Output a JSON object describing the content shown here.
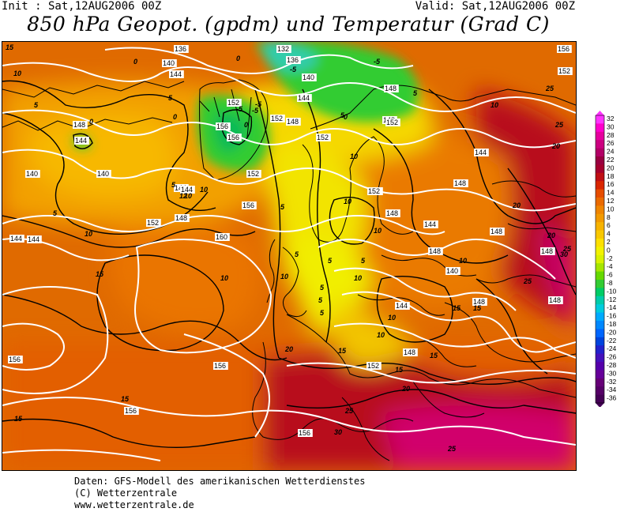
{
  "header": {
    "init": "Init : Sat,12AUG2006 00Z",
    "valid": "Valid: Sat,12AUG2006 00Z",
    "title": "850 hPa Geopot. (gpdm) und Temperatur (Grad C)"
  },
  "map": {
    "kind": "weather-forecast-map",
    "variables": [
      "850 hPa geopotential (gpdm)",
      "temperature (Grad C)"
    ],
    "geopotential_labels": [
      {
        "id": "g1",
        "text": "136"
      },
      {
        "id": "g2",
        "text": "132"
      },
      {
        "id": "g3",
        "text": "136"
      },
      {
        "id": "g4",
        "text": "140"
      },
      {
        "id": "g5",
        "text": "144"
      },
      {
        "id": "g6",
        "text": "140"
      },
      {
        "id": "g7",
        "text": "144"
      },
      {
        "id": "g8",
        "text": "148"
      },
      {
        "id": "g9",
        "text": "152"
      },
      {
        "id": "g10",
        "text": "152"
      },
      {
        "id": "g11",
        "text": "156"
      },
      {
        "id": "g12",
        "text": "156"
      },
      {
        "id": "g13",
        "text": "148"
      },
      {
        "id": "g14",
        "text": "148"
      },
      {
        "id": "g15",
        "text": "144"
      },
      {
        "id": "g16",
        "text": "140"
      },
      {
        "id": "g17",
        "text": "144"
      },
      {
        "id": "g18",
        "text": "152"
      },
      {
        "id": "g19",
        "text": "148"
      },
      {
        "id": "g20",
        "text": "152"
      },
      {
        "id": "g21",
        "text": "144"
      },
      {
        "id": "g22",
        "text": "148"
      },
      {
        "id": "g23",
        "text": "144"
      },
      {
        "id": "g24",
        "text": "152"
      },
      {
        "id": "g25",
        "text": "152"
      },
      {
        "id": "g26",
        "text": "156"
      },
      {
        "id": "g27",
        "text": "160"
      },
      {
        "id": "g28",
        "text": "148"
      },
      {
        "id": "g29",
        "text": "144"
      },
      {
        "id": "g30",
        "text": "140"
      },
      {
        "id": "g31",
        "text": "144"
      },
      {
        "id": "g32",
        "text": "148"
      },
      {
        "id": "g33",
        "text": "148"
      },
      {
        "id": "g34",
        "text": "144"
      },
      {
        "id": "g35",
        "text": "148"
      },
      {
        "id": "g36",
        "text": "148"
      },
      {
        "id": "g37",
        "text": "148"
      },
      {
        "id": "g38",
        "text": "152"
      },
      {
        "id": "g39",
        "text": "152"
      },
      {
        "id": "g40",
        "text": "156"
      },
      {
        "id": "g41",
        "text": "156"
      },
      {
        "id": "g42",
        "text": "156"
      },
      {
        "id": "g43",
        "text": "152"
      },
      {
        "id": "g44",
        "text": "148"
      },
      {
        "id": "g45",
        "text": "144"
      },
      {
        "id": "g46",
        "text": "148"
      },
      {
        "id": "g47",
        "text": "140"
      },
      {
        "id": "g48",
        "text": "148"
      },
      {
        "id": "g49",
        "text": "156"
      },
      {
        "id": "g50",
        "text": "156"
      }
    ],
    "temperature_labels": [
      {
        "id": "t1",
        "text": "15"
      },
      {
        "id": "t2",
        "text": "10"
      },
      {
        "id": "t3",
        "text": "5"
      },
      {
        "id": "t4",
        "text": "0"
      },
      {
        "id": "t5",
        "text": "0"
      },
      {
        "id": "t6",
        "text": "-5"
      },
      {
        "id": "t7",
        "text": "-5"
      },
      {
        "id": "t8",
        "text": "-5"
      },
      {
        "id": "t9",
        "text": "0"
      },
      {
        "id": "t10",
        "text": "-5"
      },
      {
        "id": "t11",
        "text": "-5"
      },
      {
        "id": "t12",
        "text": "5"
      },
      {
        "id": "t13",
        "text": "0"
      },
      {
        "id": "t14",
        "text": "5"
      },
      {
        "id": "t15",
        "text": "0"
      },
      {
        "id": "t16",
        "text": "5"
      },
      {
        "id": "t17",
        "text": "10"
      },
      {
        "id": "t18",
        "text": "25"
      },
      {
        "id": "t19",
        "text": "25"
      },
      {
        "id": "t20",
        "text": "20"
      },
      {
        "id": "t21",
        "text": "10"
      },
      {
        "id": "t22",
        "text": "10"
      },
      {
        "id": "t23",
        "text": "5"
      },
      {
        "id": "t24",
        "text": "10"
      },
      {
        "id": "t25",
        "text": "10"
      },
      {
        "id": "t26",
        "text": "20"
      },
      {
        "id": "t27",
        "text": "20"
      },
      {
        "id": "t28",
        "text": "25"
      },
      {
        "id": "t29",
        "text": "30"
      },
      {
        "id": "t30",
        "text": "25"
      },
      {
        "id": "t31",
        "text": "10"
      },
      {
        "id": "t32",
        "text": "15"
      },
      {
        "id": "t33",
        "text": "15"
      },
      {
        "id": "t34",
        "text": "10"
      },
      {
        "id": "t35",
        "text": "10"
      },
      {
        "id": "t36",
        "text": "10"
      },
      {
        "id": "t37",
        "text": "5"
      },
      {
        "id": "t38",
        "text": "5"
      },
      {
        "id": "t39",
        "text": "10"
      },
      {
        "id": "t40",
        "text": "5"
      },
      {
        "id": "t41",
        "text": "5"
      },
      {
        "id": "t42",
        "text": "5"
      },
      {
        "id": "t43",
        "text": "10"
      },
      {
        "id": "t44",
        "text": "12"
      },
      {
        "id": "t45",
        "text": "10"
      },
      {
        "id": "t46",
        "text": "15"
      },
      {
        "id": "t47",
        "text": "20"
      },
      {
        "id": "t48",
        "text": "15"
      },
      {
        "id": "t49",
        "text": "15"
      },
      {
        "id": "t50",
        "text": "20"
      },
      {
        "id": "t51",
        "text": "25"
      },
      {
        "id": "t52",
        "text": "30"
      },
      {
        "id": "t53",
        "text": "25"
      },
      {
        "id": "t54",
        "text": "15"
      },
      {
        "id": "t55",
        "text": "15"
      },
      {
        "id": "t56",
        "text": "10"
      },
      {
        "id": "t57",
        "text": "5"
      },
      {
        "id": "t58",
        "text": "5"
      },
      {
        "id": "t59",
        "text": "15"
      },
      {
        "id": "t60",
        "text": "5"
      },
      {
        "id": "t61",
        "text": "0"
      }
    ],
    "colors": {
      "frame": "#000000",
      "geopotential_contour": "#ffffff",
      "temperature_contour": "#000000"
    }
  },
  "legend": {
    "labels": [
      "32",
      "30",
      "28",
      "26",
      "24",
      "22",
      "20",
      "18",
      "16",
      "14",
      "12",
      "10",
      "8",
      "6",
      "4",
      "2",
      "0",
      "-2",
      "-4",
      "-6",
      "-8",
      "-10",
      "-12",
      "-14",
      "-16",
      "-18",
      "-20",
      "-22",
      "-24",
      "-26",
      "-28",
      "-30",
      "-32",
      "-34",
      "-36"
    ],
    "colors": [
      "#ff33ff",
      "#ff00cc",
      "#e6009e",
      "#cc0080",
      "#b30066",
      "#990040",
      "#a6002e",
      "#bf0f14",
      "#d92600",
      "#e64d00",
      "#ea6a00",
      "#ef8500",
      "#f29a00",
      "#f7b300",
      "#f9c800",
      "#fde000",
      "#f2f200",
      "#d9f200",
      "#a6e600",
      "#66d900",
      "#33cc33",
      "#00cc66",
      "#00ccaa",
      "#00ccdd",
      "#00aaff",
      "#0088ff",
      "#0066ff",
      "#0044dd",
      "#2222cc",
      "#4411bb",
      "#5500aa",
      "#660099",
      "#660077",
      "#550066",
      "#440055"
    ]
  },
  "footer": {
    "line1": "Daten: GFS-Modell des amerikanischen Wetterdienstes",
    "line2": "(C) Wetterzentrale",
    "line3": "www.wetterzentrale.de"
  }
}
